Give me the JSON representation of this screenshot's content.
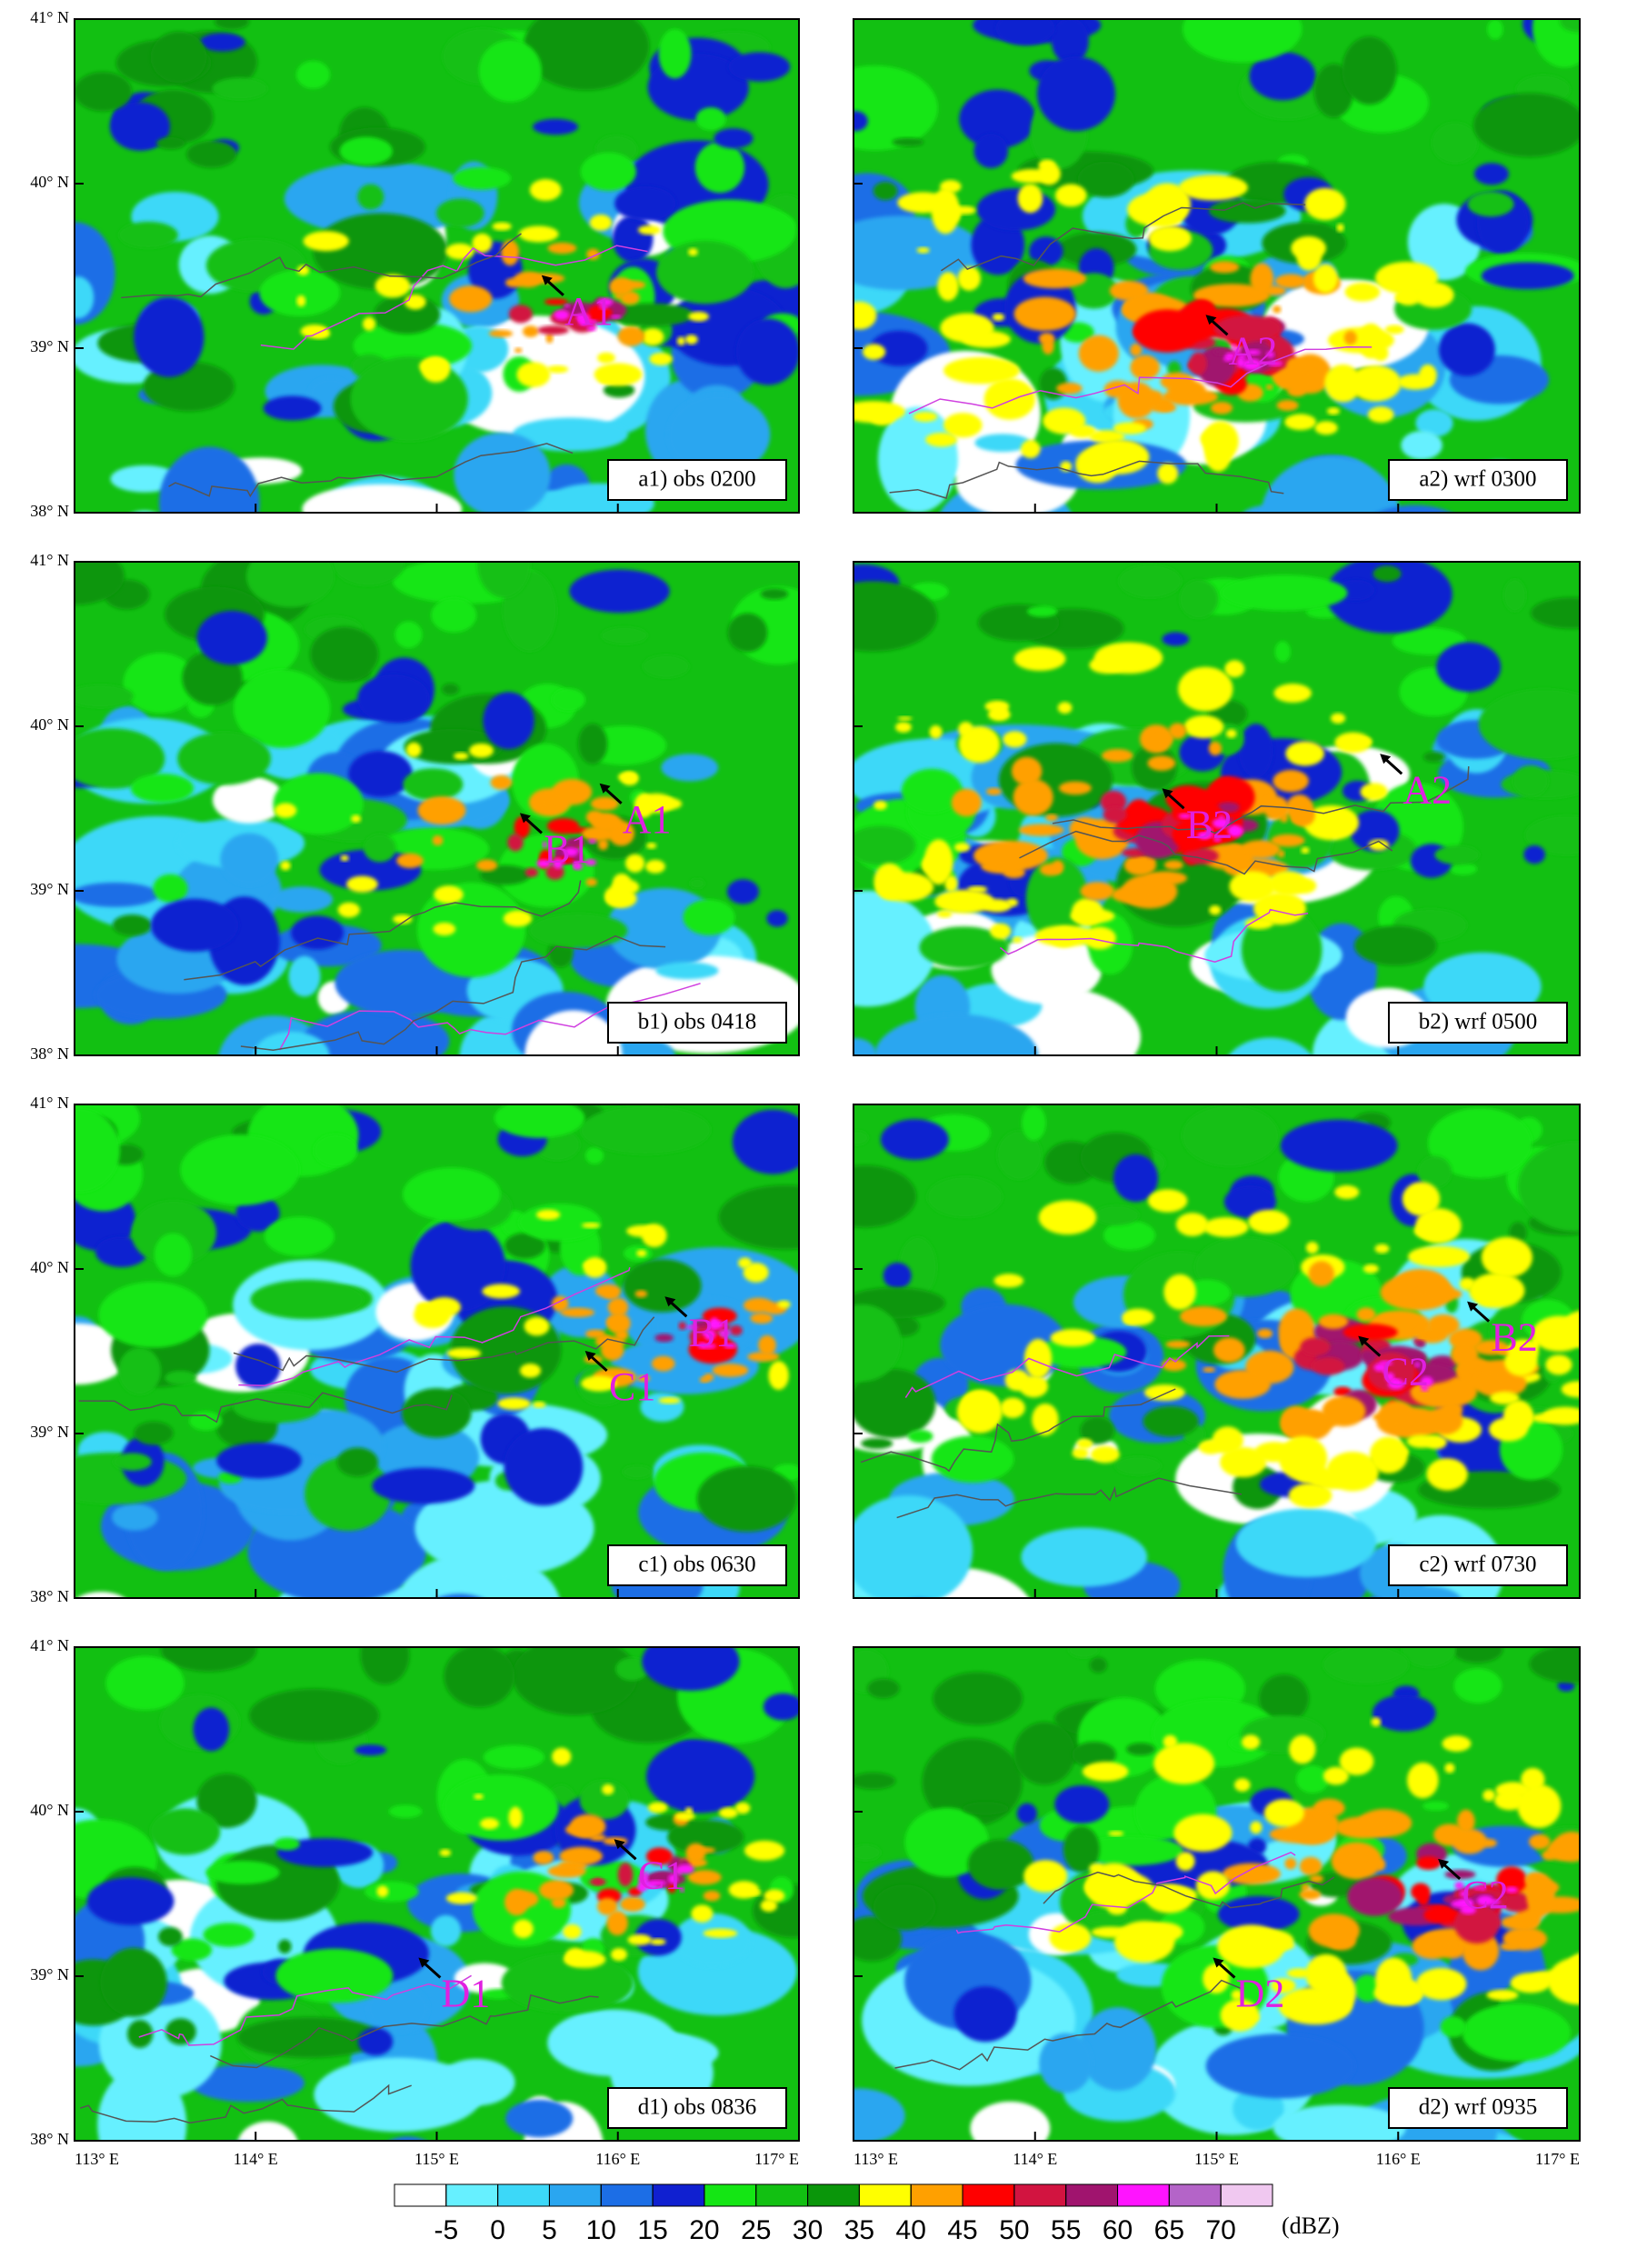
{
  "panels": [
    {
      "label": "a1) obs 0200",
      "annotations": [
        "A1"
      ]
    },
    {
      "label": "a2) wrf 0300",
      "annotations": [
        "A2"
      ]
    },
    {
      "label": "b1) obs 0418",
      "annotations": [
        "B1",
        "A1"
      ]
    },
    {
      "label": "b2) wrf 0500",
      "annotations": [
        "B2",
        "A2"
      ]
    },
    {
      "label": "c1) obs 0630",
      "annotations": [
        "B1",
        "C1"
      ]
    },
    {
      "label": "c2) wrf 0730",
      "annotations": [
        "C2",
        "B2"
      ]
    },
    {
      "label": "d1) obs 0836",
      "annotations": [
        "C1",
        "D1"
      ]
    },
    {
      "label": "d2) wrf 0935",
      "annotations": [
        "C2",
        "D2"
      ]
    }
  ],
  "y_axis_labels": [
    "41° N",
    "40° N",
    "39° N",
    "38° N"
  ],
  "x_axis_labels": [
    "113° E",
    "114° E",
    "115° E",
    "116° E",
    "117° E"
  ],
  "colorbar": {
    "ticks": [
      -5,
      0,
      5,
      10,
      15,
      20,
      25,
      30,
      35,
      40,
      45,
      50,
      55,
      60,
      65,
      70
    ],
    "colors": [
      "#ffffff",
      "#66f0ff",
      "#3cd8f8",
      "#2aa6f0",
      "#1c6ee6",
      "#1020d0",
      "#14e614",
      "#12c012",
      "#0a960a",
      "#ffff00",
      "#ffa000",
      "#ff0000",
      "#d21440",
      "#a0146e",
      "#ff14ff",
      "#b464c8",
      "#f0c8f0"
    ],
    "unit": "(dBZ)"
  }
}
